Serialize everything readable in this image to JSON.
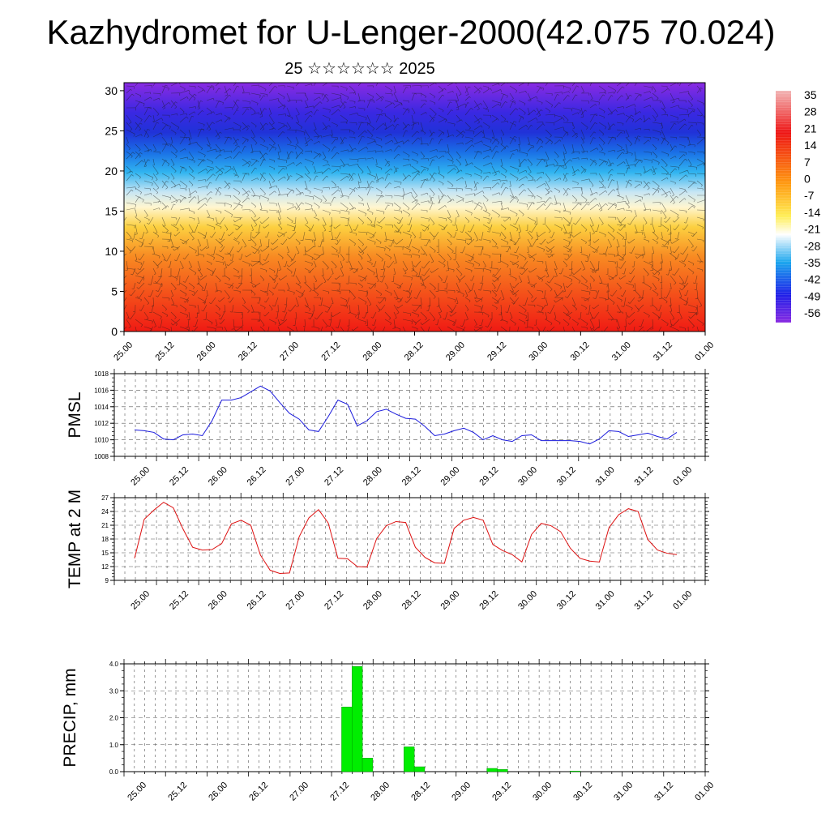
{
  "title": "Kazhydromet for U-Lenger-2000(42.075 70.024)",
  "subtitle": "25 ☆☆☆☆☆☆ 2025",
  "chart_data": [
    {
      "type": "heatmap",
      "xlabel": "",
      "ylabel": "",
      "ylim": [
        0,
        31
      ],
      "y_ticks": [
        "0",
        "5",
        "10",
        "15",
        "20",
        "25",
        "30"
      ],
      "x_ticks": [
        "25.00",
        "25.12",
        "26.00",
        "26.12",
        "27.00",
        "27.12",
        "28.00",
        "28.12",
        "29.00",
        "29.12",
        "30.00",
        "30.12",
        "31.00",
        "31.12",
        "01.00"
      ],
      "colorbar_labels": [
        "35",
        "28",
        "21",
        "14",
        "7",
        "0",
        "-7",
        "-14",
        "-21",
        "-28",
        "-35",
        "-42",
        "-49",
        "-56"
      ],
      "colorbar_range": [
        -60,
        40
      ],
      "colorbar_colors": [
        "#8a2be2",
        "#2020e8",
        "#1aa6ee",
        "#ffffff",
        "#ffee55",
        "#ff9a10",
        "#ee1515",
        "#f2b5b5"
      ],
      "field_profile": {
        "levels": [
          0,
          5,
          10,
          13,
          16,
          18,
          20,
          22,
          25,
          28,
          31
        ],
        "values": [
          30,
          22,
          10,
          0,
          -10,
          -22,
          -35,
          -45,
          -52,
          -58,
          -60
        ]
      },
      "overlay": "wind vectors"
    },
    {
      "type": "line",
      "ylabel": "PMSL",
      "ylim": [
        1008,
        1018
      ],
      "y_ticks": [
        "1008",
        "1010",
        "1012",
        "1014",
        "1016",
        "1018"
      ],
      "x_ticks": [
        "25.00",
        "25.12",
        "26.00",
        "26.12",
        "27.00",
        "27.12",
        "28.00",
        "28.12",
        "29.00",
        "29.12",
        "30.00",
        "30.12",
        "31.00",
        "31.12",
        "01.00"
      ],
      "x_hours": [
        0,
        3,
        6,
        9,
        12,
        15,
        18,
        21,
        24,
        27,
        30,
        33,
        36,
        39,
        42,
        45,
        48,
        51,
        54,
        57,
        60,
        63,
        66,
        69,
        72,
        75,
        78,
        81,
        84,
        87,
        90,
        93,
        96,
        99,
        102,
        105,
        108,
        111,
        114,
        117,
        120,
        123,
        126,
        129,
        132,
        135,
        138,
        141,
        144,
        147,
        150,
        153,
        156,
        159,
        162,
        165,
        168
      ],
      "values": [
        1011.2,
        1011.1,
        1010.9,
        1010.1,
        1010.0,
        1010.6,
        1010.7,
        1010.5,
        1012.3,
        1014.8,
        1014.8,
        1015.1,
        1015.8,
        1016.5,
        1015.9,
        1014.5,
        1013.2,
        1012.5,
        1011.2,
        1011.0,
        1012.8,
        1014.8,
        1014.3,
        1011.7,
        1012.3,
        1013.4,
        1013.7,
        1013.1,
        1012.6,
        1012.5,
        1011.6,
        1010.5,
        1010.7,
        1011.1,
        1011.4,
        1010.9,
        1010.0,
        1010.5,
        1010.0,
        1009.8,
        1010.5,
        1010.6,
        1009.9,
        1009.9,
        1009.9,
        1009.9,
        1009.8,
        1009.5,
        1010.1,
        1011.1,
        1011.0,
        1010.4,
        1010.6,
        1010.8,
        1010.4,
        1010.1,
        1010.9
      ],
      "color": "#1a1adc"
    },
    {
      "type": "line",
      "ylabel": "TEMP at 2 M",
      "ylim": [
        9,
        27
      ],
      "y_ticks": [
        "9",
        "12",
        "15",
        "18",
        "21",
        "24",
        "27"
      ],
      "x_ticks": [
        "25.00",
        "25.12",
        "26.00",
        "26.12",
        "27.00",
        "27.12",
        "28.00",
        "28.12",
        "29.00",
        "29.12",
        "30.00",
        "30.12",
        "31.00",
        "31.12",
        "01.00"
      ],
      "x_hours": [
        0,
        3,
        6,
        9,
        12,
        15,
        18,
        21,
        24,
        27,
        30,
        33,
        36,
        39,
        42,
        45,
        48,
        51,
        54,
        57,
        60,
        63,
        66,
        69,
        72,
        75,
        78,
        81,
        84,
        87,
        90,
        93,
        96,
        99,
        102,
        105,
        108,
        111,
        114,
        117,
        120,
        123,
        126,
        129,
        132,
        135,
        138,
        141,
        144,
        147,
        150,
        153,
        156,
        159,
        162,
        165,
        168
      ],
      "values": [
        13.8,
        22.3,
        24.3,
        26.0,
        24.8,
        20.2,
        16.2,
        15.6,
        15.7,
        17.0,
        21.3,
        22.1,
        21.0,
        14.5,
        11.2,
        10.5,
        10.6,
        18.5,
        22.6,
        24.4,
        21.5,
        13.8,
        13.7,
        12.0,
        11.9,
        18.1,
        20.9,
        21.8,
        21.6,
        16.2,
        14.0,
        12.8,
        12.7,
        20.3,
        22.1,
        22.7,
        22.1,
        16.8,
        15.5,
        14.6,
        13.0,
        19.0,
        21.4,
        20.9,
        19.6,
        16.0,
        13.8,
        13.2,
        13.0,
        20.5,
        23.3,
        24.6,
        24.0,
        17.9,
        15.6,
        14.9,
        14.6
      ],
      "color": "#dd1010"
    },
    {
      "type": "bar",
      "ylabel": "PRECIP, mm",
      "ylim": [
        0,
        4
      ],
      "y_ticks": [
        "0.0",
        "1.0",
        "2.0",
        "3.0",
        "4.0"
      ],
      "x_ticks": [
        "25.00",
        "25.12",
        "26.00",
        "26.12",
        "27.00",
        "27.12",
        "28.00",
        "28.12",
        "29.00",
        "29.12",
        "30.00",
        "30.12",
        "31.00",
        "31.12",
        "01.00"
      ],
      "bars": [
        {
          "hour": 63,
          "value": 2.4
        },
        {
          "hour": 66,
          "value": 3.9
        },
        {
          "hour": 69,
          "value": 0.5
        },
        {
          "hour": 81,
          "value": 0.92
        },
        {
          "hour": 84,
          "value": 0.18
        },
        {
          "hour": 105,
          "value": 0.12
        },
        {
          "hour": 108,
          "value": 0.08
        },
        {
          "hour": 129,
          "value": 0.02
        }
      ],
      "color": "#00ee00"
    }
  ]
}
